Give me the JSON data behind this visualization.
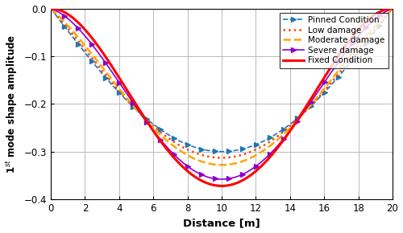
{
  "title": "",
  "xlabel": "Distance [m]",
  "ylabel": "1$^{st}$ mode shape amplitude",
  "xlim": [
    0,
    20
  ],
  "ylim": [
    -0.4,
    0.0
  ],
  "xticks": [
    0,
    2,
    4,
    6,
    8,
    10,
    12,
    14,
    16,
    18,
    20
  ],
  "yticks": [
    0,
    -0.1,
    -0.2,
    -0.3,
    -0.4
  ],
  "L": 20.0,
  "n_points": 500,
  "series": [
    {
      "label": "Pinned Condition",
      "color": "#1f77b4",
      "linestyle": "--",
      "marker": ">",
      "markersize": 4,
      "linewidth": 1.2,
      "peak_amp": -0.3,
      "shape": "pinned",
      "alpha_blend": 0.0
    },
    {
      "label": "Low damage",
      "color": "#ff4500",
      "linestyle": ":",
      "marker": null,
      "markersize": 0,
      "linewidth": 1.8,
      "peak_amp": -0.313,
      "shape": "blend",
      "alpha_blend": 0.18
    },
    {
      "label": "Moderate damage",
      "color": "#ffa500",
      "linestyle": "--",
      "marker": null,
      "markersize": 0,
      "linewidth": 1.8,
      "peak_amp": -0.328,
      "shape": "blend",
      "alpha_blend": 0.38
    },
    {
      "label": "Severe damage",
      "color": "#8b00cc",
      "linestyle": "-",
      "marker": ">",
      "markersize": 4,
      "linewidth": 1.2,
      "peak_amp": -0.358,
      "shape": "blend",
      "alpha_blend": 0.78
    },
    {
      "label": "Fixed Condition",
      "color": "#ff0000",
      "linestyle": "-",
      "marker": null,
      "markersize": 0,
      "linewidth": 2.2,
      "peak_amp": -0.372,
      "shape": "fixed",
      "alpha_blend": 1.0
    }
  ],
  "background_color": "#ffffff",
  "grid_color": "#b0b0b0"
}
